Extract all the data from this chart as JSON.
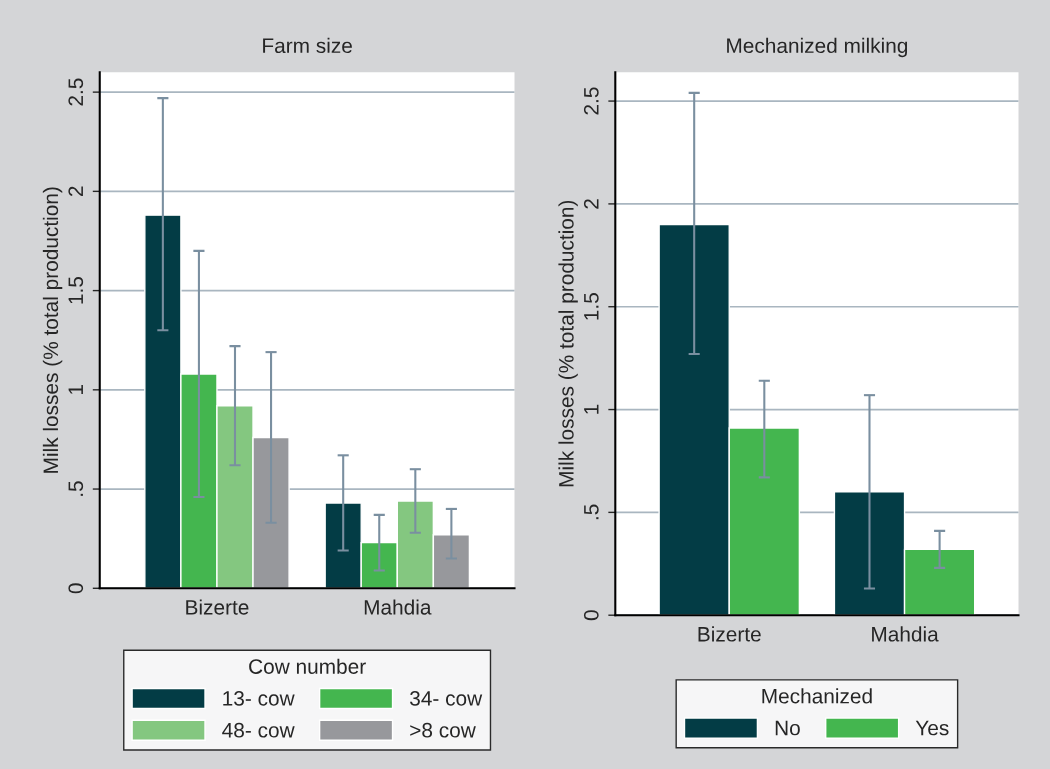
{
  "chart_data": [
    {
      "type": "bar",
      "title": "Farm size",
      "ylabel": "Milk losses (% total production)",
      "legend_title": "Cow number",
      "categories": [
        "Bizerte",
        "Mahdia"
      ],
      "ylim": [
        0,
        2.6
      ],
      "yticks": [
        0,
        {
          "value": 0.5,
          "label": ".5"
        },
        1,
        1.5,
        2,
        2.5
      ],
      "grid": "y",
      "legend": "bottom",
      "series": [
        {
          "name": "13- cow",
          "color": "#033c45",
          "values": [
            1.88,
            0.43
          ],
          "errors": [
            [
              1.3,
              2.47
            ],
            [
              0.19,
              0.67
            ]
          ]
        },
        {
          "name": "34- cow",
          "color": "#44b64f",
          "values": [
            1.08,
            0.23
          ],
          "errors": [
            [
              0.46,
              1.7
            ],
            [
              0.09,
              0.37
            ]
          ]
        },
        {
          "name": "48- cow",
          "color": "#84c780",
          "values": [
            0.92,
            0.44
          ],
          "errors": [
            [
              0.62,
              1.22
            ],
            [
              0.28,
              0.6
            ]
          ]
        },
        {
          "name": ">8 cow",
          "color": "#97989c",
          "values": [
            0.76,
            0.27
          ],
          "errors": [
            [
              0.33,
              1.19
            ],
            [
              0.15,
              0.4
            ]
          ]
        }
      ]
    },
    {
      "type": "bar",
      "title": "Mechanized milking",
      "ylabel": "Milk losses (% total production)",
      "legend_title": "Mechanized",
      "categories": [
        "Bizerte",
        "Mahdia"
      ],
      "ylim": [
        0,
        2.64
      ],
      "yticks": [
        0,
        {
          "value": 0.5,
          "label": ".5"
        },
        1,
        1.5,
        2,
        2.5
      ],
      "grid": "y",
      "legend": "bottom",
      "series": [
        {
          "name": "No",
          "color": "#033c45",
          "values": [
            1.9,
            0.6
          ],
          "errors": [
            [
              1.27,
              2.54
            ],
            [
              0.13,
              1.07
            ]
          ]
        },
        {
          "name": "Yes",
          "color": "#44b64f",
          "values": [
            0.91,
            0.32
          ],
          "errors": [
            [
              0.67,
              1.14
            ],
            [
              0.23,
              0.41
            ]
          ]
        }
      ]
    }
  ]
}
